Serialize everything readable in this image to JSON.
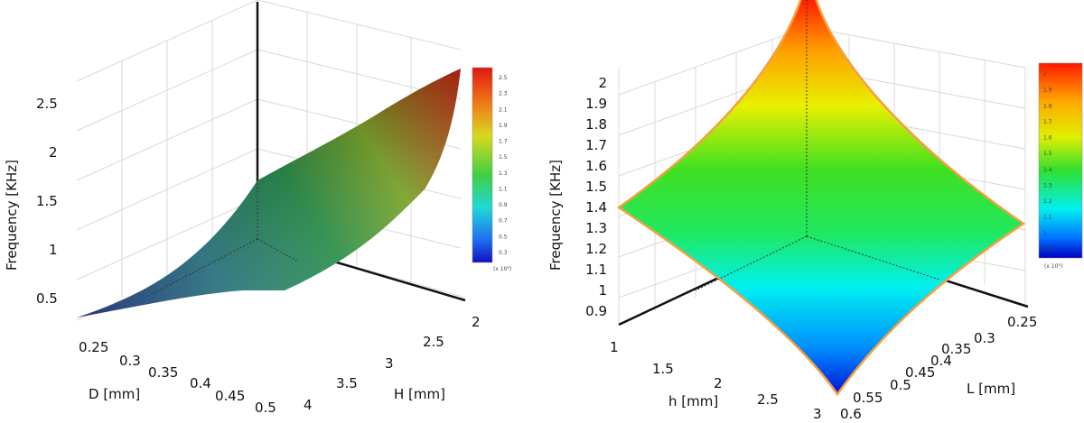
{
  "chart_data": [
    {
      "type": "surface",
      "zlabel": "Frequency [KHz]",
      "xlabel": "D [mm]",
      "ylabel": "H [mm]",
      "z_ticks": [
        "0.5",
        "1",
        "1.5",
        "2",
        "2.5"
      ],
      "x_ticks": [
        "0.25",
        "0.3",
        "0.35",
        "0.4",
        "0.45",
        "0.5"
      ],
      "y_ticks": [
        "2",
        "2.5",
        "3",
        "3.5",
        "4"
      ],
      "xlim": [
        0.2,
        0.5
      ],
      "ylim": [
        2,
        4
      ],
      "zlim": [
        0.3,
        2.7
      ],
      "colorbar_ticks": [
        "2.5",
        "2.3",
        "2.1",
        "1.9",
        "1.7",
        "1.5",
        "1.3",
        "1.1",
        "0.9",
        "0.7",
        "0.5",
        "0.3"
      ],
      "colorbar_note": "(x 10³)",
      "colormap": "parula-like",
      "color_low": "#0a1a7a",
      "color_high": "#e01810"
    },
    {
      "type": "surface",
      "zlabel": "Frequency [KHz]",
      "xlabel": "h [mm]",
      "ylabel": "L [mm]",
      "z_ticks": [
        "0.9",
        "1",
        "1.1",
        "1.2",
        "1.3",
        "1.4",
        "1.5",
        "1.6",
        "1.7",
        "1.8",
        "1.9",
        "2"
      ],
      "x_ticks": [
        "1",
        "1.5",
        "2",
        "2.5",
        "3"
      ],
      "y_ticks": [
        "0.25",
        "0.3",
        "0.35",
        "0.4",
        "0.45",
        "0.5",
        "0.55",
        "0.6"
      ],
      "xlim": [
        1,
        3
      ],
      "ylim": [
        0.25,
        0.6
      ],
      "zlim": [
        0.85,
        2.1
      ],
      "colorbar_ticks": [
        "2",
        "1.9",
        "1.8",
        "1.7",
        "1.6",
        "1.5",
        "1.4",
        "1.3",
        "1.2",
        "1.1",
        "1",
        "0.9"
      ],
      "colorbar_note": "(x 10³)",
      "colormap": "jet",
      "color_low": "#0000c8",
      "color_high": "#ff2000",
      "edge_color": "#f4a040"
    }
  ]
}
